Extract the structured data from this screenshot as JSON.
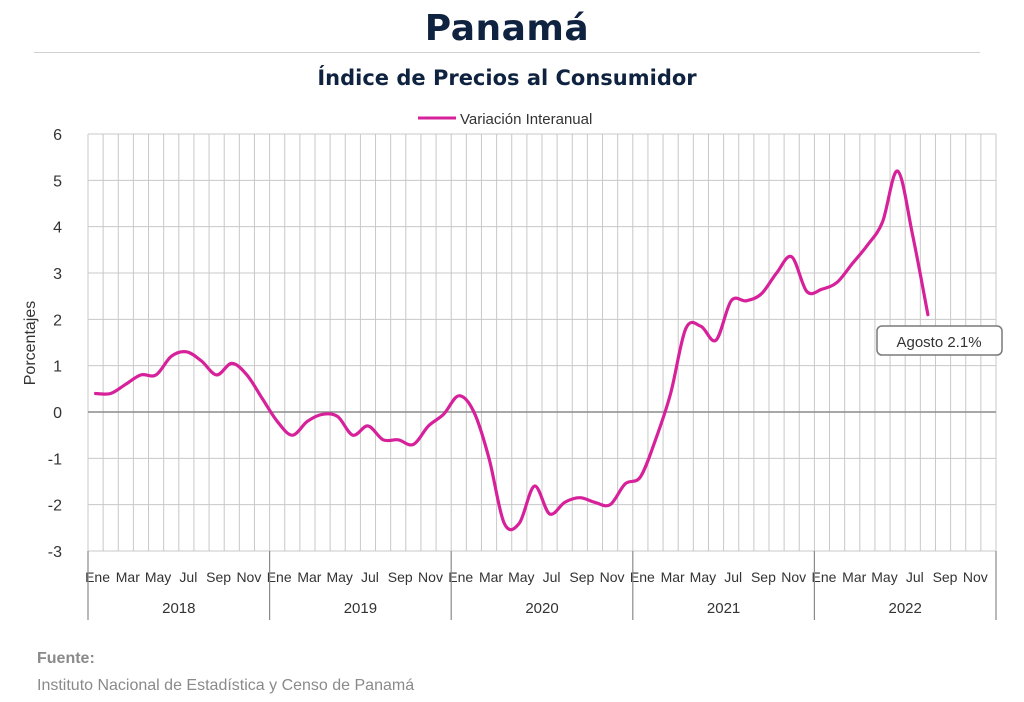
{
  "header": {
    "title": "Panamá",
    "subtitle": "Índice de Precios al Consumidor"
  },
  "source": {
    "label": "Fuente:",
    "text": "Instituto Nacional de Estadística y Censo de Panamá"
  },
  "colors": {
    "series": "#d6219a",
    "grid": "#c8c8c8",
    "zero_line": "#8c8c8c",
    "title": "#0f2340",
    "negative_ticks": "#e3261f"
  },
  "chart_data": {
    "type": "line",
    "title": "Índice de Precios al Consumidor",
    "ylabel": "Porcentajes",
    "ylim": [
      -3,
      6
    ],
    "yticks": [
      "6",
      "5",
      "4",
      "3",
      "2",
      "1",
      "0",
      "-1",
      "-2",
      "-3"
    ],
    "grid": "on",
    "legend_position": "top-center",
    "month_tick_labels": [
      "Ene",
      "Mar",
      "May",
      "Jul",
      "Sep",
      "Nov"
    ],
    "years": [
      "2018",
      "2019",
      "2020",
      "2021",
      "2022"
    ],
    "series": [
      {
        "name": "Variación Interanual",
        "values": [
          0.4,
          0.4,
          0.6,
          0.8,
          0.8,
          1.2,
          1.3,
          1.1,
          0.8,
          1.05,
          0.8,
          0.3,
          -0.2,
          -0.5,
          -0.2,
          -0.05,
          -0.1,
          -0.5,
          -0.3,
          -0.6,
          -0.6,
          -0.7,
          -0.3,
          -0.05,
          0.35,
          0.0,
          -1.0,
          -2.4,
          -2.4,
          -1.6,
          -2.2,
          -1.95,
          -1.85,
          -1.95,
          -2.0,
          -1.55,
          -1.4,
          -0.6,
          0.4,
          1.8,
          1.85,
          1.55,
          2.4,
          2.4,
          2.55,
          3.0,
          3.35,
          2.6,
          2.65,
          2.8,
          3.2,
          3.6,
          4.1,
          5.2,
          3.8,
          2.1
        ]
      }
    ],
    "annotation": {
      "text": "Agosto 2.1%"
    }
  }
}
